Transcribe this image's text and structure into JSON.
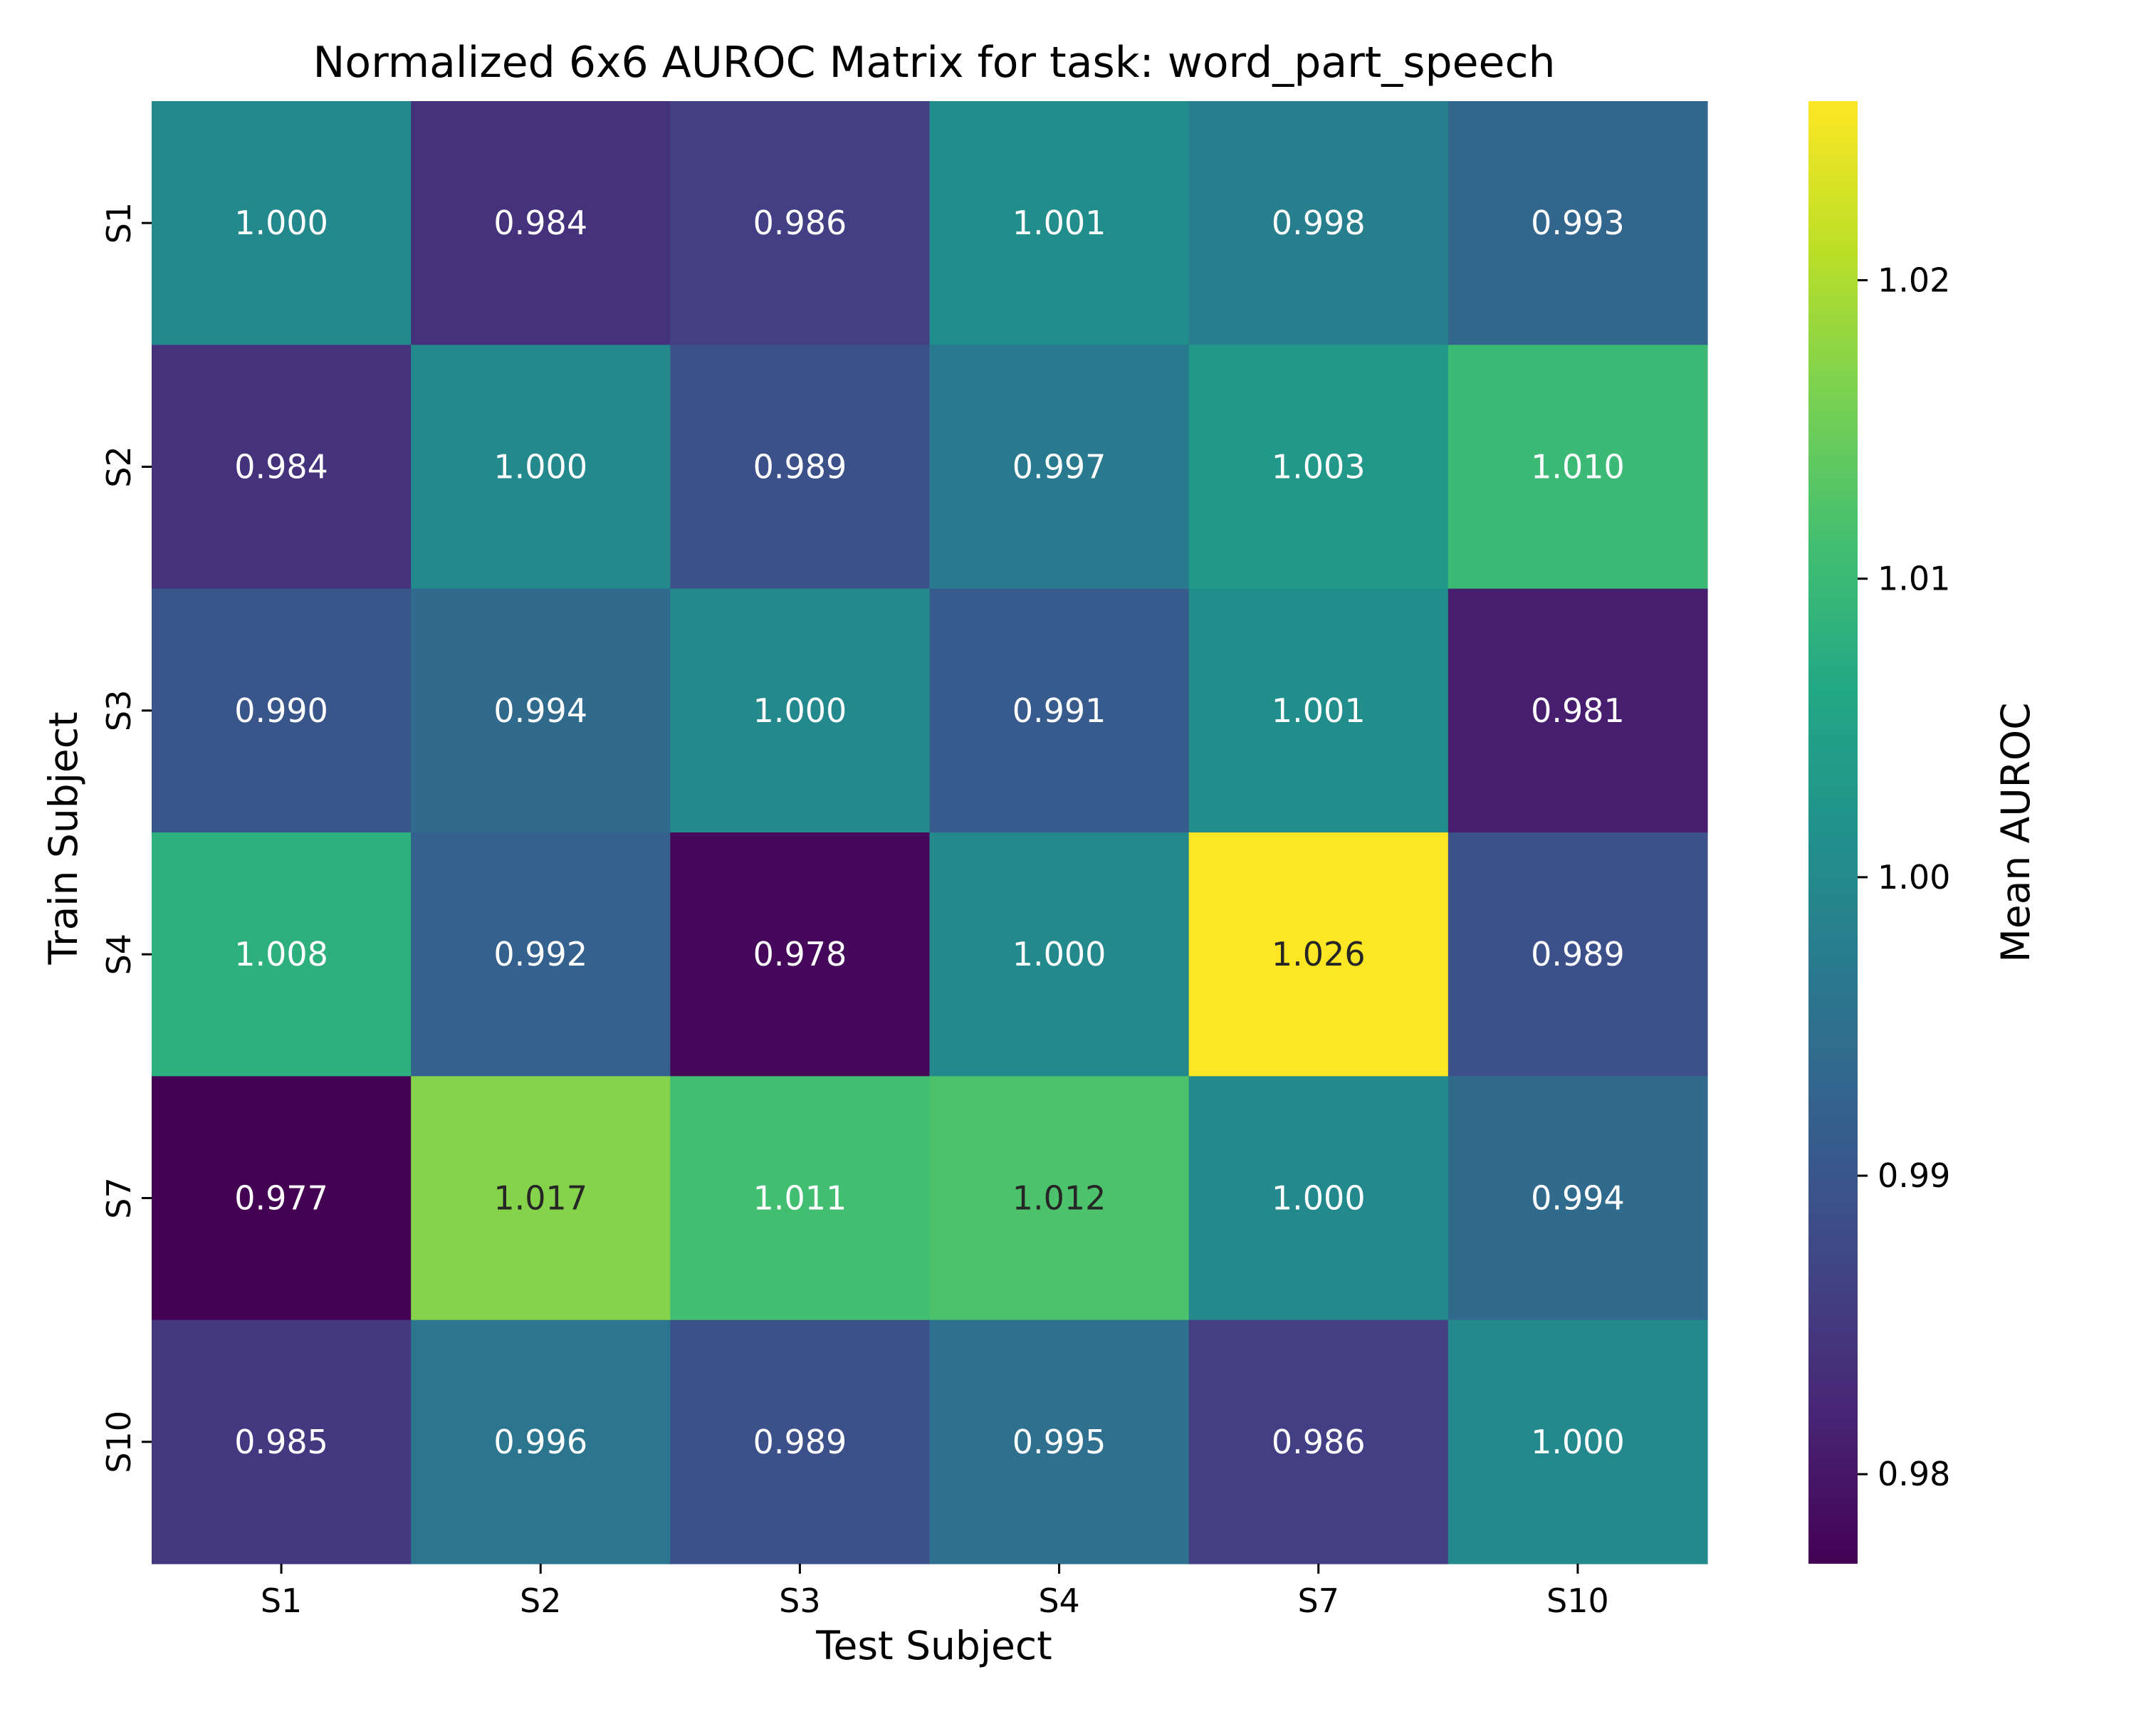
{
  "chart_data": {
    "type": "heatmap",
    "title": "Normalized 6x6 AUROC Matrix for task: word_part_speech",
    "xlabel": "Test Subject",
    "ylabel": "Train Subject",
    "x_categories": [
      "S1",
      "S2",
      "S3",
      "S4",
      "S7",
      "S10"
    ],
    "y_categories": [
      "S1",
      "S2",
      "S3",
      "S4",
      "S7",
      "S10"
    ],
    "values": [
      [
        1.0,
        0.984,
        0.986,
        1.001,
        0.998,
        0.993
      ],
      [
        0.984,
        1.0,
        0.989,
        0.997,
        1.003,
        1.01
      ],
      [
        0.99,
        0.994,
        1.0,
        0.991,
        1.001,
        0.981
      ],
      [
        1.008,
        0.992,
        0.978,
        1.0,
        1.026,
        0.989
      ],
      [
        0.977,
        1.017,
        1.011,
        1.012,
        1.0,
        0.994
      ],
      [
        0.985,
        0.996,
        0.989,
        0.995,
        0.986,
        1.0
      ]
    ],
    "value_format": "3 decimals",
    "colormap": "viridis",
    "colorbar": {
      "label": "Mean AUROC",
      "range": [
        0.977,
        1.026
      ],
      "ticks": [
        0.98,
        0.99,
        1.0,
        1.01,
        1.02
      ],
      "tick_labels": [
        "0.98",
        "0.99",
        "1.00",
        "1.01",
        "1.02"
      ]
    },
    "annotation_colors": {
      "light": "#ffffff",
      "dark": "#262626"
    },
    "grid": false
  }
}
